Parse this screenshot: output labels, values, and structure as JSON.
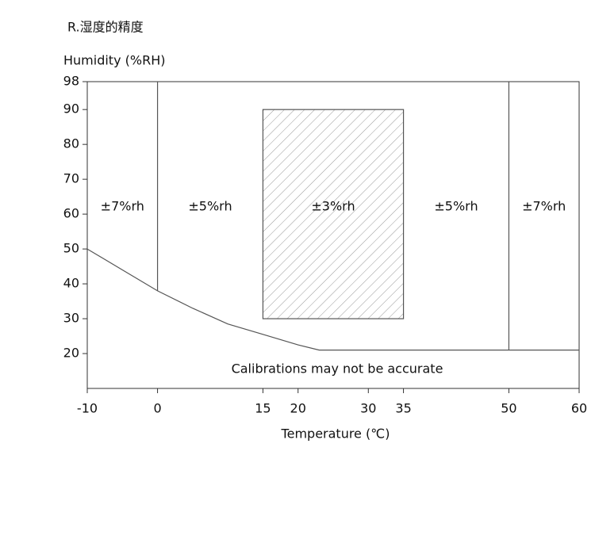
{
  "chart_data": {
    "type": "zone",
    "title": "R.湿度的精度",
    "y_label": "Humidity (%RH)",
    "x_label": "Temperature (℃)",
    "note": "Calibrations may not be accurate",
    "xlim": [
      -10,
      60
    ],
    "xticks": [
      -10,
      0,
      15,
      20,
      30,
      35,
      50,
      60
    ],
    "ylim": [
      10,
      98
    ],
    "yticks": [
      20,
      30,
      40,
      50,
      60,
      70,
      80,
      90,
      98
    ],
    "boundary": {
      "x": [
        -10,
        -5,
        0,
        5,
        10,
        15,
        20,
        23,
        60
      ],
      "y": [
        50,
        44,
        38,
        33,
        28.5,
        25.5,
        22.5,
        21,
        21
      ]
    },
    "dividers": [
      {
        "x": 0,
        "y": [
          38,
          98
        ]
      },
      {
        "x": 50,
        "y": [
          21,
          98
        ]
      }
    ],
    "box": {
      "x": [
        15,
        35
      ],
      "y": [
        30,
        90
      ]
    },
    "zones": [
      "±7%rh",
      "±5%rh",
      "±3%rh",
      "±5%rh",
      "±7%rh"
    ],
    "color": "#555"
  }
}
